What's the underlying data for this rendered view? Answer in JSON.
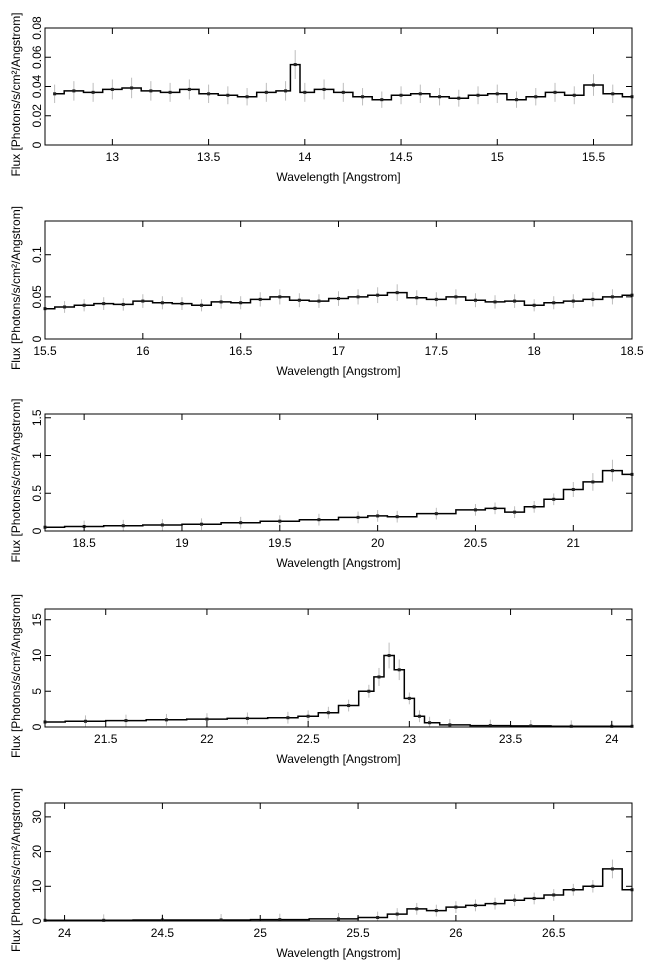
{
  "chart_data": [
    {
      "type": "line",
      "xlabel": "Wavelength [Angstrom]",
      "ylabel": "Flux [Photons/s/cm²/Angstrom]",
      "xlim": [
        12.65,
        15.7
      ],
      "ylim": [
        0,
        0.08
      ],
      "x_ticks": [
        "13",
        "13.5",
        "14",
        "14.5",
        "15",
        "15.5"
      ],
      "y_ticks": [
        "0",
        "0.02",
        "0.04",
        "0.06",
        "0.08"
      ],
      "series": [
        {
          "style": "histogram-step-with-error-bars",
          "x": [
            12.7,
            12.8,
            12.9,
            13.0,
            13.1,
            13.2,
            13.3,
            13.4,
            13.5,
            13.6,
            13.7,
            13.8,
            13.9,
            13.95,
            14.0,
            14.1,
            14.2,
            14.3,
            14.4,
            14.5,
            14.6,
            14.7,
            14.8,
            14.9,
            15.0,
            15.1,
            15.2,
            15.3,
            15.4,
            15.5,
            15.6,
            15.7
          ],
          "y": [
            0.035,
            0.037,
            0.036,
            0.038,
            0.039,
            0.037,
            0.036,
            0.038,
            0.035,
            0.034,
            0.033,
            0.036,
            0.037,
            0.055,
            0.036,
            0.038,
            0.036,
            0.033,
            0.031,
            0.034,
            0.035,
            0.033,
            0.032,
            0.034,
            0.035,
            0.031,
            0.033,
            0.036,
            0.034,
            0.041,
            0.035,
            0.033
          ]
        }
      ]
    },
    {
      "type": "line",
      "xlabel": "Wavelength [Angstrom]",
      "ylabel": "Flux [Photons/s/cm²/Angstrom]",
      "xlim": [
        15.5,
        18.5
      ],
      "ylim": [
        0,
        0.14
      ],
      "x_ticks": [
        "15.5",
        "16",
        "16.5",
        "17",
        "17.5",
        "18",
        "18.5"
      ],
      "y_ticks": [
        "0",
        "0.05",
        "0.1"
      ],
      "series": [
        {
          "style": "histogram-step-with-error-bars",
          "x": [
            15.5,
            15.6,
            15.7,
            15.8,
            15.9,
            16.0,
            16.1,
            16.2,
            16.3,
            16.4,
            16.5,
            16.6,
            16.7,
            16.8,
            16.9,
            17.0,
            17.1,
            17.2,
            17.3,
            17.4,
            17.5,
            17.6,
            17.7,
            17.8,
            17.9,
            18.0,
            18.1,
            18.2,
            18.3,
            18.4,
            18.5
          ],
          "y": [
            0.036,
            0.038,
            0.04,
            0.042,
            0.041,
            0.045,
            0.043,
            0.042,
            0.04,
            0.044,
            0.043,
            0.047,
            0.05,
            0.046,
            0.045,
            0.048,
            0.05,
            0.052,
            0.055,
            0.049,
            0.047,
            0.05,
            0.046,
            0.044,
            0.045,
            0.04,
            0.043,
            0.045,
            0.047,
            0.05,
            0.052
          ]
        }
      ]
    },
    {
      "type": "line",
      "xlabel": "Wavelength [Angstrom]",
      "ylabel": "Flux [Photons/s/cm²/Angstrom]",
      "xlim": [
        18.3,
        21.3
      ],
      "ylim": [
        0,
        1.55
      ],
      "x_ticks": [
        "18.5",
        "19",
        "19.5",
        "20",
        "20.5",
        "21"
      ],
      "y_ticks": [
        "0",
        "0.5",
        "1",
        "1.5"
      ],
      "series": [
        {
          "style": "histogram-step-with-error-bars",
          "x": [
            18.3,
            18.5,
            18.7,
            18.9,
            19.1,
            19.3,
            19.5,
            19.7,
            19.9,
            20.0,
            20.1,
            20.3,
            20.5,
            20.6,
            20.7,
            20.8,
            20.9,
            21.0,
            21.1,
            21.2,
            21.3
          ],
          "y": [
            0.05,
            0.06,
            0.07,
            0.08,
            0.09,
            0.11,
            0.13,
            0.15,
            0.18,
            0.2,
            0.19,
            0.23,
            0.28,
            0.3,
            0.25,
            0.32,
            0.42,
            0.55,
            0.65,
            0.8,
            0.75
          ]
        }
      ]
    },
    {
      "type": "line",
      "xlabel": "Wavelength [Angstrom]",
      "ylabel": "Flux [Photons/s/cm²/Angstrom]",
      "xlim": [
        21.2,
        24.1
      ],
      "ylim": [
        0,
        16.5
      ],
      "x_ticks": [
        "21.5",
        "22",
        "22.5",
        "23",
        "23.5",
        "24"
      ],
      "y_ticks": [
        "0",
        "5",
        "10",
        "15"
      ],
      "series": [
        {
          "style": "histogram-step-with-error-bars",
          "x": [
            21.2,
            21.4,
            21.6,
            21.8,
            22.0,
            22.2,
            22.4,
            22.5,
            22.6,
            22.7,
            22.8,
            22.85,
            22.9,
            22.95,
            23.0,
            23.05,
            23.1,
            23.2,
            23.4,
            23.6,
            23.8,
            24.0,
            24.1
          ],
          "y": [
            0.7,
            0.8,
            0.9,
            1.0,
            1.1,
            1.2,
            1.3,
            1.5,
            2.0,
            3.0,
            5.0,
            7.0,
            10.0,
            8.0,
            4.0,
            1.5,
            0.6,
            0.3,
            0.2,
            0.15,
            0.1,
            0.1,
            0.1
          ]
        }
      ]
    },
    {
      "type": "line",
      "xlabel": "Wavelength [Angstrom]",
      "ylabel": "Flux [Photons/s/cm²/Angstrom]",
      "xlim": [
        23.9,
        26.9
      ],
      "ylim": [
        0,
        34
      ],
      "x_ticks": [
        "24",
        "24.5",
        "25",
        "25.5",
        "26",
        "26.5"
      ],
      "y_ticks": [
        "0",
        "10",
        "20",
        "30"
      ],
      "series": [
        {
          "style": "histogram-step-with-error-bars",
          "x": [
            23.9,
            24.2,
            24.5,
            24.8,
            25.1,
            25.4,
            25.6,
            25.7,
            25.8,
            25.9,
            26.0,
            26.1,
            26.2,
            26.3,
            26.4,
            26.5,
            26.6,
            26.7,
            26.8,
            26.9
          ],
          "y": [
            0.2,
            0.2,
            0.3,
            0.3,
            0.4,
            0.6,
            1.0,
            2.0,
            3.5,
            3.0,
            4.0,
            4.5,
            5.0,
            6.0,
            6.5,
            7.5,
            9.0,
            10.0,
            15.0,
            9.0
          ]
        }
      ]
    }
  ]
}
